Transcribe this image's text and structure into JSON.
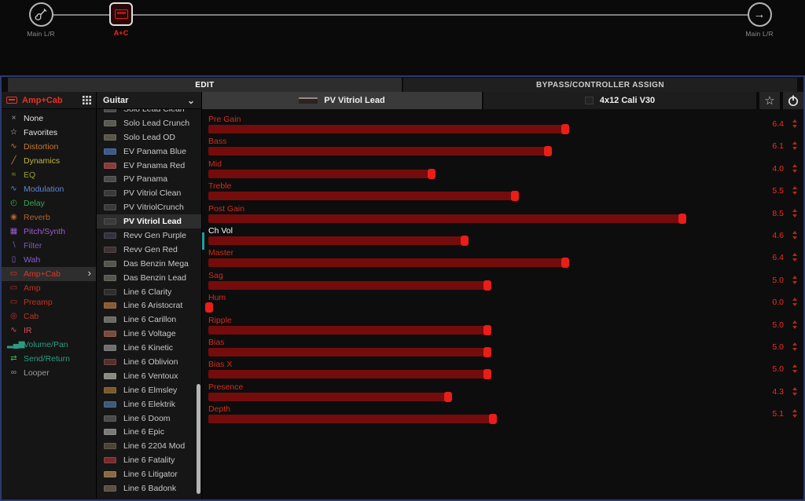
{
  "colors": {
    "accent_red": "#e8281c",
    "param_fill": "#740c0c",
    "param_knob": "#ea1d18",
    "controller_teal": "#1f9e9e",
    "frame_blue": "#2b3a70"
  },
  "icons": {
    "favorite": "☆",
    "chevron_down": "⌄",
    "chevron_right": "›",
    "output_arrow": "→"
  },
  "signal_chain": {
    "input_label": "Main L/R",
    "block_label": "A+C",
    "output_label": "Main L/R"
  },
  "tabs": {
    "edit": "EDIT",
    "bypass": "BYPASS/CONTROLLER ASSIGN"
  },
  "sidebar": {
    "header_title": "Amp+Cab",
    "items": [
      {
        "label": "None",
        "glyph": "×",
        "color": "#e4e4e4",
        "icon_color": "#a0a0a0"
      },
      {
        "label": "Favorites",
        "glyph": "☆",
        "color": "#e4e4e4",
        "icon_color": "#c8c8c8"
      },
      {
        "label": "Distortion",
        "glyph": "∿",
        "color": "#c47a2e",
        "icon_color": "#c47a2e"
      },
      {
        "label": "Dynamics",
        "glyph": "╱",
        "color": "#c0b83a",
        "icon_color": "#c8862e"
      },
      {
        "label": "EQ",
        "glyph": "≈",
        "color": "#97a234",
        "icon_color": "#97a234"
      },
      {
        "label": "Modulation",
        "glyph": "∿",
        "color": "#5c87d2",
        "icon_color": "#5c87d2"
      },
      {
        "label": "Delay",
        "glyph": "◴",
        "color": "#38a94c",
        "icon_color": "#38a94c"
      },
      {
        "label": "Reverb",
        "glyph": "◉",
        "color": "#b2622c",
        "icon_color": "#b2622c"
      },
      {
        "label": "Pitch/Synth",
        "glyph": "▦",
        "color": "#9d5bd2",
        "icon_color": "#9d5bd2"
      },
      {
        "label": "Filter",
        "glyph": "∖",
        "color": "#7e58bb",
        "icon_color": "#7e58bb"
      },
      {
        "label": "Wah",
        "glyph": "▯",
        "color": "#8a5ec6",
        "icon_color": "#8a5ec6"
      },
      {
        "label": "Amp+Cab",
        "glyph": "▭",
        "color": "#e73323",
        "icon_color": "#e73323",
        "selected": true
      },
      {
        "label": "Amp",
        "glyph": "▭",
        "color": "#c03222",
        "icon_color": "#c03222"
      },
      {
        "label": "Preamp",
        "glyph": "▭",
        "color": "#c03222",
        "icon_color": "#c03222"
      },
      {
        "label": "Cab",
        "glyph": "◎",
        "color": "#c03222",
        "icon_color": "#c03222"
      },
      {
        "label": "IR",
        "glyph": "∿",
        "color": "#d94f66",
        "icon_color": "#d94f66"
      },
      {
        "label": "Volume/Pan",
        "glyph": "▂▄▆",
        "color": "#2d9b82",
        "icon_color": "#2d9b82"
      },
      {
        "label": "Send/Return",
        "glyph": "⇄",
        "color": "#2d9b82",
        "icon_color": "#3bb54a"
      },
      {
        "label": "Looper",
        "glyph": "∞",
        "color": "#9b9b9b",
        "icon_color": "#9b9b9b"
      }
    ]
  },
  "models": {
    "dropdown": "Guitar",
    "items": [
      {
        "label": "Solo Lead Clean",
        "icon_color": "#4a4a4a"
      },
      {
        "label": "Solo Lead Crunch",
        "icon_color": "#5a5a52"
      },
      {
        "label": "Solo Lead OD",
        "icon_color": "#5a554a"
      },
      {
        "label": "EV Panama Blue",
        "icon_color": "#3a5a8c"
      },
      {
        "label": "EV Panama Red",
        "icon_color": "#8c3a3a"
      },
      {
        "label": "PV Panama",
        "icon_color": "#4a4a4a"
      },
      {
        "label": "PV Vitriol Clean",
        "icon_color": "#3a3a3a"
      },
      {
        "label": "PV VitriolCrunch",
        "icon_color": "#3a3a3a"
      },
      {
        "label": "PV Vitriol Lead",
        "icon_color": "#3a3a3a",
        "selected": true
      },
      {
        "label": "Revv Gen Purple",
        "icon_color": "#32323e"
      },
      {
        "label": "Revv Gen Red",
        "icon_color": "#3e3232"
      },
      {
        "label": "Das Benzin Mega",
        "icon_color": "#55544e"
      },
      {
        "label": "Das Benzin Lead",
        "icon_color": "#55544e"
      },
      {
        "label": "Line 6 Clarity",
        "icon_color": "#2e2e2e"
      },
      {
        "label": "Line 6 Aristocrat",
        "icon_color": "#8c5a32"
      },
      {
        "label": "Line 6 Carillon",
        "icon_color": "#6a6a62"
      },
      {
        "label": "Line 6 Voltage",
        "icon_color": "#7a4a3a"
      },
      {
        "label": "Line 6 Kinetic",
        "icon_color": "#6e6e6e"
      },
      {
        "label": "Line 6 Oblivion",
        "icon_color": "#5a2e2e"
      },
      {
        "label": "Line 6 Ventoux",
        "icon_color": "#8a8a82"
      },
      {
        "label": "Line 6 Elmsley",
        "icon_color": "#7a5a2a"
      },
      {
        "label": "Line 6 Elektrik",
        "icon_color": "#3a5a7a"
      },
      {
        "label": "Line 6 Doom",
        "icon_color": "#4a4a4a"
      },
      {
        "label": "Line 6 Epic",
        "icon_color": "#7a7a7a"
      },
      {
        "label": "Line 6 2204 Mod",
        "icon_color": "#4a4436"
      },
      {
        "label": "Line 6 Fatality",
        "icon_color": "#7a2a2a"
      },
      {
        "label": "Line 6 Litigator",
        "icon_color": "#8a6a42"
      },
      {
        "label": "Line 6 Badonk",
        "icon_color": "#5a5042"
      }
    ]
  },
  "editor": {
    "amp_tab": "PV Vitriol Lead",
    "cab_tab": "4x12 Cali V30",
    "param_max": 10,
    "params": [
      {
        "label": "Pre Gain",
        "value": "6.4"
      },
      {
        "label": "Bass",
        "value": "6.1"
      },
      {
        "label": "Mid",
        "value": "4.0"
      },
      {
        "label": "Treble",
        "value": "5.5"
      },
      {
        "label": "Post Gain",
        "value": "8.5"
      },
      {
        "label": "Ch Vol",
        "value": "4.6",
        "label_color": "#ffffff",
        "assigned": true
      },
      {
        "label": "Master",
        "value": "6.4"
      },
      {
        "label": "Sag",
        "value": "5.0"
      },
      {
        "label": "Hum",
        "value": "0.0"
      },
      {
        "label": "Ripple",
        "value": "5.0"
      },
      {
        "label": "Bias",
        "value": "5.0"
      },
      {
        "label": "Bias X",
        "value": "5.0"
      },
      {
        "label": "Presence",
        "value": "4.3"
      },
      {
        "label": "Depth",
        "value": "5.1"
      }
    ]
  }
}
